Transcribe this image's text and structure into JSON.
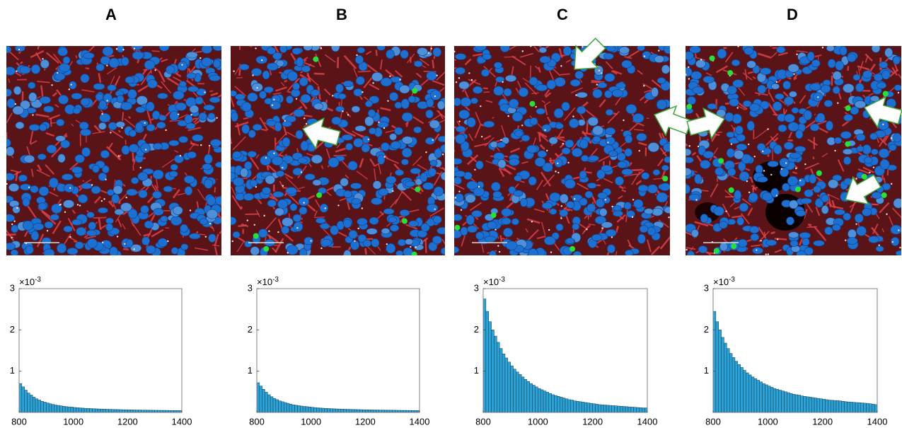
{
  "chart_data": [
    {
      "type": "histogram",
      "title": "A",
      "color": "#2ba3d8",
      "xlim": [
        800,
        1400
      ],
      "ylim": [
        0,
        3
      ],
      "xticks": [
        800,
        1000,
        1200,
        1400
      ],
      "yticks": [
        1,
        2,
        3
      ],
      "y_multiplier": {
        "base": "×10",
        "exponent": "-3"
      },
      "bins": [
        800,
        810,
        820,
        830,
        840,
        850,
        860,
        870,
        880,
        890,
        900,
        910,
        920,
        930,
        940,
        950,
        960,
        970,
        980,
        990,
        1000,
        1010,
        1020,
        1030,
        1040,
        1050,
        1060,
        1070,
        1080,
        1090,
        1100,
        1110,
        1120,
        1130,
        1140,
        1150,
        1160,
        1170,
        1180,
        1190,
        1200,
        1210,
        1220,
        1230,
        1240,
        1250,
        1260,
        1270,
        1280,
        1290,
        1300,
        1310,
        1320,
        1330,
        1340,
        1350,
        1360,
        1370,
        1380,
        1390,
        1400
      ],
      "values": [
        0.7,
        0.62,
        0.54,
        0.47,
        0.42,
        0.37,
        0.33,
        0.3,
        0.27,
        0.25,
        0.23,
        0.21,
        0.195,
        0.18,
        0.17,
        0.16,
        0.15,
        0.14,
        0.135,
        0.13,
        0.12,
        0.115,
        0.11,
        0.105,
        0.1,
        0.097,
        0.094,
        0.09,
        0.087,
        0.084,
        0.082,
        0.08,
        0.077,
        0.075,
        0.073,
        0.071,
        0.07,
        0.068,
        0.066,
        0.065,
        0.063,
        0.062,
        0.06,
        0.059,
        0.058,
        0.057,
        0.056,
        0.055,
        0.054,
        0.053,
        0.052,
        0.051,
        0.05,
        0.05,
        0.049,
        0.048,
        0.047,
        0.047,
        0.046,
        0.045
      ]
    },
    {
      "type": "histogram",
      "title": "B",
      "color": "#2ba3d8",
      "xlim": [
        800,
        1400
      ],
      "ylim": [
        0,
        3
      ],
      "xticks": [
        800,
        1000,
        1200,
        1400
      ],
      "yticks": [
        1,
        2,
        3
      ],
      "y_multiplier": {
        "base": "×10",
        "exponent": "-3"
      },
      "bins": [
        800,
        810,
        820,
        830,
        840,
        850,
        860,
        870,
        880,
        890,
        900,
        910,
        920,
        930,
        940,
        950,
        960,
        970,
        980,
        990,
        1000,
        1010,
        1020,
        1030,
        1040,
        1050,
        1060,
        1070,
        1080,
        1090,
        1100,
        1110,
        1120,
        1130,
        1140,
        1150,
        1160,
        1170,
        1180,
        1190,
        1200,
        1210,
        1220,
        1230,
        1240,
        1250,
        1260,
        1270,
        1280,
        1290,
        1300,
        1310,
        1320,
        1330,
        1340,
        1350,
        1360,
        1370,
        1380,
        1390,
        1400
      ],
      "values": [
        0.72,
        0.64,
        0.56,
        0.49,
        0.43,
        0.38,
        0.34,
        0.31,
        0.28,
        0.26,
        0.24,
        0.22,
        0.2,
        0.185,
        0.175,
        0.165,
        0.155,
        0.145,
        0.14,
        0.132,
        0.125,
        0.118,
        0.112,
        0.107,
        0.102,
        0.098,
        0.095,
        0.091,
        0.088,
        0.085,
        0.083,
        0.081,
        0.078,
        0.076,
        0.074,
        0.072,
        0.07,
        0.069,
        0.067,
        0.065,
        0.064,
        0.062,
        0.061,
        0.06,
        0.059,
        0.058,
        0.057,
        0.056,
        0.055,
        0.054,
        0.053,
        0.052,
        0.051,
        0.05,
        0.05,
        0.049,
        0.048,
        0.047,
        0.047,
        0.046
      ]
    },
    {
      "type": "histogram",
      "title": "C",
      "color": "#2ba3d8",
      "xlim": [
        800,
        1400
      ],
      "ylim": [
        0,
        3
      ],
      "xticks": [
        800,
        1000,
        1200,
        1400
      ],
      "yticks": [
        1,
        2,
        3
      ],
      "y_multiplier": {
        "base": "×10",
        "exponent": "-3"
      },
      "bins": [
        800,
        810,
        820,
        830,
        840,
        850,
        860,
        870,
        880,
        890,
        900,
        910,
        920,
        930,
        940,
        950,
        960,
        970,
        980,
        990,
        1000,
        1010,
        1020,
        1030,
        1040,
        1050,
        1060,
        1070,
        1080,
        1090,
        1100,
        1110,
        1120,
        1130,
        1140,
        1150,
        1160,
        1170,
        1180,
        1190,
        1200,
        1210,
        1220,
        1230,
        1240,
        1250,
        1260,
        1270,
        1280,
        1290,
        1300,
        1310,
        1320,
        1330,
        1340,
        1350,
        1360,
        1370,
        1380,
        1390,
        1400
      ],
      "values": [
        2.75,
        2.45,
        2.2,
        2.0,
        1.85,
        1.7,
        1.55,
        1.42,
        1.32,
        1.22,
        1.13,
        1.05,
        0.98,
        0.92,
        0.86,
        0.8,
        0.75,
        0.7,
        0.66,
        0.62,
        0.58,
        0.55,
        0.52,
        0.49,
        0.46,
        0.43,
        0.41,
        0.39,
        0.37,
        0.35,
        0.33,
        0.31,
        0.3,
        0.28,
        0.27,
        0.26,
        0.25,
        0.24,
        0.23,
        0.22,
        0.21,
        0.2,
        0.19,
        0.185,
        0.18,
        0.175,
        0.17,
        0.165,
        0.16,
        0.155,
        0.15,
        0.145,
        0.14,
        0.135,
        0.13,
        0.125,
        0.12,
        0.115,
        0.11,
        0.11
      ]
    },
    {
      "type": "histogram",
      "title": "D",
      "color": "#2ba3d8",
      "xlim": [
        800,
        1400
      ],
      "ylim": [
        0,
        3
      ],
      "xticks": [
        800,
        1000,
        1200,
        1400
      ],
      "yticks": [
        1,
        2,
        3
      ],
      "y_multiplier": {
        "base": "×10",
        "exponent": "-3"
      },
      "bins": [
        800,
        810,
        820,
        830,
        840,
        850,
        860,
        870,
        880,
        890,
        900,
        910,
        920,
        930,
        940,
        950,
        960,
        970,
        980,
        990,
        1000,
        1010,
        1020,
        1030,
        1040,
        1050,
        1060,
        1070,
        1080,
        1090,
        1100,
        1110,
        1120,
        1130,
        1140,
        1150,
        1160,
        1170,
        1180,
        1190,
        1200,
        1210,
        1220,
        1230,
        1240,
        1250,
        1260,
        1270,
        1280,
        1290,
        1300,
        1310,
        1320,
        1330,
        1340,
        1350,
        1360,
        1370,
        1380,
        1390,
        1400
      ],
      "values": [
        2.45,
        2.2,
        2.0,
        1.82,
        1.68,
        1.55,
        1.43,
        1.33,
        1.24,
        1.16,
        1.09,
        1.02,
        0.96,
        0.91,
        0.86,
        0.82,
        0.78,
        0.74,
        0.7,
        0.67,
        0.64,
        0.61,
        0.58,
        0.56,
        0.54,
        0.52,
        0.5,
        0.48,
        0.46,
        0.44,
        0.43,
        0.42,
        0.4,
        0.39,
        0.38,
        0.37,
        0.36,
        0.35,
        0.34,
        0.33,
        0.32,
        0.31,
        0.3,
        0.295,
        0.29,
        0.285,
        0.28,
        0.27,
        0.26,
        0.255,
        0.25,
        0.245,
        0.24,
        0.235,
        0.23,
        0.225,
        0.22,
        0.21,
        0.2,
        0.19
      ]
    }
  ]
}
